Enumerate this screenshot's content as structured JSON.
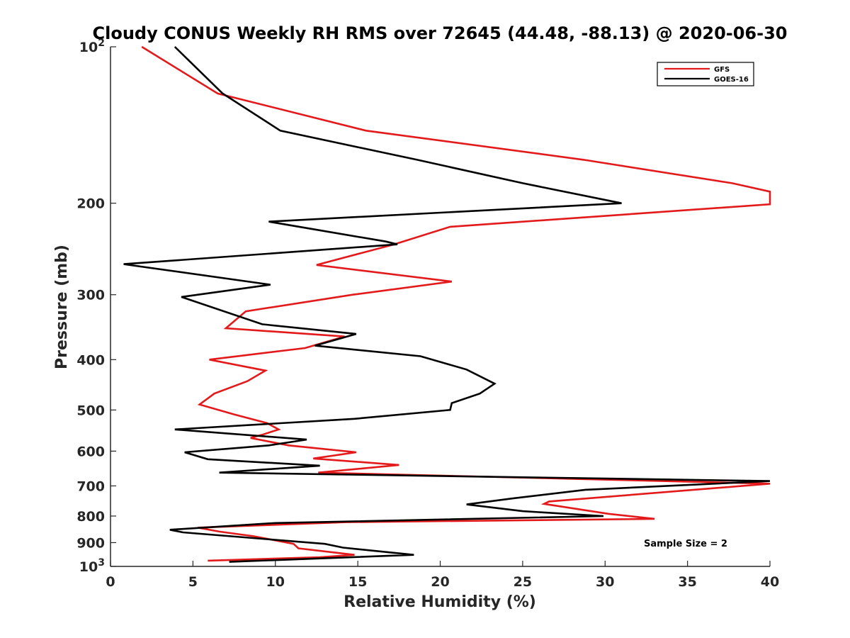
{
  "chart_data": {
    "type": "line",
    "title": "Cloudy CONUS Weekly RH RMS over 72645 (44.48, -88.13) @ 2020-06-30",
    "xlabel": "Relative Humidity (%)",
    "ylabel": "Pressure (mb)",
    "xlim": [
      0,
      40
    ],
    "ylim": [
      100,
      1000
    ],
    "y_scale": "log",
    "y_reversed": true,
    "grid": false,
    "legend_position": "top-right",
    "annotation": "Sample Size = 2",
    "x_ticks": [
      {
        "value": 0,
        "label": "0"
      },
      {
        "value": 5,
        "label": "5"
      },
      {
        "value": 10,
        "label": "10"
      },
      {
        "value": 15,
        "label": "15"
      },
      {
        "value": 20,
        "label": "20"
      },
      {
        "value": 25,
        "label": "25"
      },
      {
        "value": 30,
        "label": "30"
      },
      {
        "value": 35,
        "label": "35"
      },
      {
        "value": 40,
        "label": "40"
      }
    ],
    "y_ticks": [
      {
        "value": 100,
        "base": "10",
        "exp": "2"
      },
      {
        "value": 200,
        "label": "200"
      },
      {
        "value": 300,
        "label": "300"
      },
      {
        "value": 400,
        "label": "400"
      },
      {
        "value": 500,
        "label": "500"
      },
      {
        "value": 600,
        "label": "600"
      },
      {
        "value": 700,
        "label": "700"
      },
      {
        "value": 800,
        "label": "800"
      },
      {
        "value": 900,
        "label": "900"
      },
      {
        "value": 1000,
        "base": "10",
        "exp": "3"
      }
    ],
    "series": [
      {
        "name": "GFS",
        "color": "#e31a1c",
        "points": [
          [
            1.9,
            100
          ],
          [
            6.5,
            123
          ],
          [
            15.5,
            145
          ],
          [
            28.7,
            165
          ],
          [
            37.7,
            183
          ],
          [
            40.0,
            190
          ],
          [
            40.0,
            201
          ],
          [
            20.6,
            222
          ],
          [
            17.2,
            240
          ],
          [
            12.5,
            263
          ],
          [
            20.7,
            283
          ],
          [
            14.7,
            300
          ],
          [
            8.2,
            323
          ],
          [
            7.0,
            348
          ],
          [
            14.2,
            361
          ],
          [
            11.8,
            380
          ],
          [
            6.0,
            400
          ],
          [
            9.4,
            420
          ],
          [
            8.3,
            440
          ],
          [
            6.3,
            465
          ],
          [
            5.4,
            488
          ],
          [
            7.5,
            510
          ],
          [
            9.5,
            530
          ],
          [
            10.2,
            545
          ],
          [
            9.2,
            558
          ],
          [
            8.5,
            566
          ],
          [
            10.8,
            585
          ],
          [
            14.9,
            603
          ],
          [
            12.3,
            620
          ],
          [
            17.5,
            638
          ],
          [
            12.6,
            660
          ],
          [
            40.0,
            693
          ],
          [
            26.6,
            750
          ],
          [
            26.3,
            758
          ],
          [
            30.2,
            792
          ],
          [
            33.0,
            810
          ],
          [
            14.3,
            822
          ],
          [
            5.3,
            842
          ],
          [
            6.6,
            857
          ],
          [
            8.7,
            875
          ],
          [
            11.1,
            905
          ],
          [
            11.4,
            923
          ],
          [
            14.8,
            950
          ],
          [
            12.7,
            960
          ],
          [
            5.9,
            975
          ]
        ]
      },
      {
        "name": "GOES-16",
        "color": "#000000",
        "points": [
          [
            3.9,
            100
          ],
          [
            6.8,
            123
          ],
          [
            10.3,
            145
          ],
          [
            18.6,
            165
          ],
          [
            25.0,
            183
          ],
          [
            31.0,
            200
          ],
          [
            9.6,
            217
          ],
          [
            16.7,
            237
          ],
          [
            17.4,
            240
          ],
          [
            0.8,
            262
          ],
          [
            9.7,
            287
          ],
          [
            4.3,
            303
          ],
          [
            9.2,
            342
          ],
          [
            14.9,
            357
          ],
          [
            12.4,
            376
          ],
          [
            18.8,
            394
          ],
          [
            21.6,
            418
          ],
          [
            23.3,
            445
          ],
          [
            22.4,
            465
          ],
          [
            20.7,
            485
          ],
          [
            20.6,
            500
          ],
          [
            14.8,
            520
          ],
          [
            3.9,
            545
          ],
          [
            11.9,
            570
          ],
          [
            9.6,
            585
          ],
          [
            4.5,
            603
          ],
          [
            5.9,
            622
          ],
          [
            12.7,
            640
          ],
          [
            6.6,
            660
          ],
          [
            40.0,
            685
          ],
          [
            28.8,
            712
          ],
          [
            24.4,
            740
          ],
          [
            21.6,
            760
          ],
          [
            25.0,
            783
          ],
          [
            29.9,
            800
          ],
          [
            10.0,
            825
          ],
          [
            3.6,
            850
          ],
          [
            4.4,
            860
          ],
          [
            13.0,
            905
          ],
          [
            14.1,
            920
          ],
          [
            18.4,
            950
          ],
          [
            7.2,
            980
          ]
        ]
      }
    ]
  }
}
